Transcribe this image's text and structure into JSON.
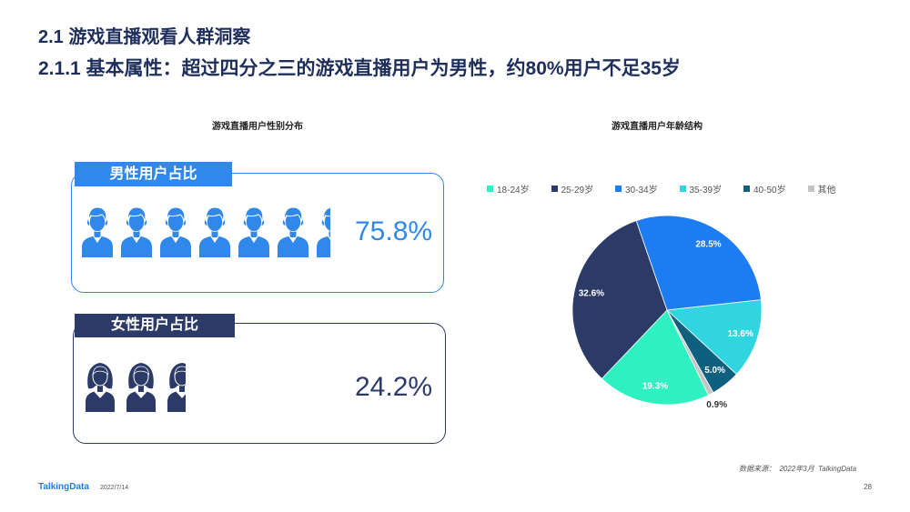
{
  "header": {
    "section_title": "2.1 游戏直播观看人群洞察",
    "headline": "2.1.1 基本属性：超过四分之三的游戏直播用户为男性，约80%用户不足35岁"
  },
  "chart_data": [
    {
      "type": "bar",
      "title": "游戏直播用户性别分布",
      "categories": [
        "男性用户占比",
        "女性用户占比"
      ],
      "values": [
        75.8,
        24.2
      ],
      "data_labels": [
        "75.8%",
        "24.2%"
      ],
      "colors": [
        "#2F88EA",
        "#2B3A67"
      ],
      "icons": [
        "male-user-icon",
        "female-user-icon"
      ]
    },
    {
      "type": "pie",
      "title": "游戏直播用户年龄结构",
      "categories": [
        "18-24岁",
        "25-29岁",
        "30-34岁",
        "35-39岁",
        "40-50岁",
        "其他"
      ],
      "values": [
        19.3,
        32.6,
        28.5,
        13.6,
        5.0,
        0.9
      ],
      "data_labels": [
        "19.3%",
        "32.6%",
        "28.5%",
        "13.6%",
        "5.0%",
        "0.9%"
      ],
      "colors": [
        "#2EF0C0",
        "#2B3A67",
        "#1E7CF2",
        "#30D5DF",
        "#0F5F7E",
        "#C4C4C4"
      ],
      "legend_position": "top"
    }
  ],
  "footer": {
    "source": "数据来源：  2022年3月  TalkingData",
    "logo_text": "TalkingData",
    "date": "2022/7/14",
    "page_number": "28"
  },
  "colors": {
    "title": "#1F2F5C",
    "brand": "#1E7CF2"
  }
}
